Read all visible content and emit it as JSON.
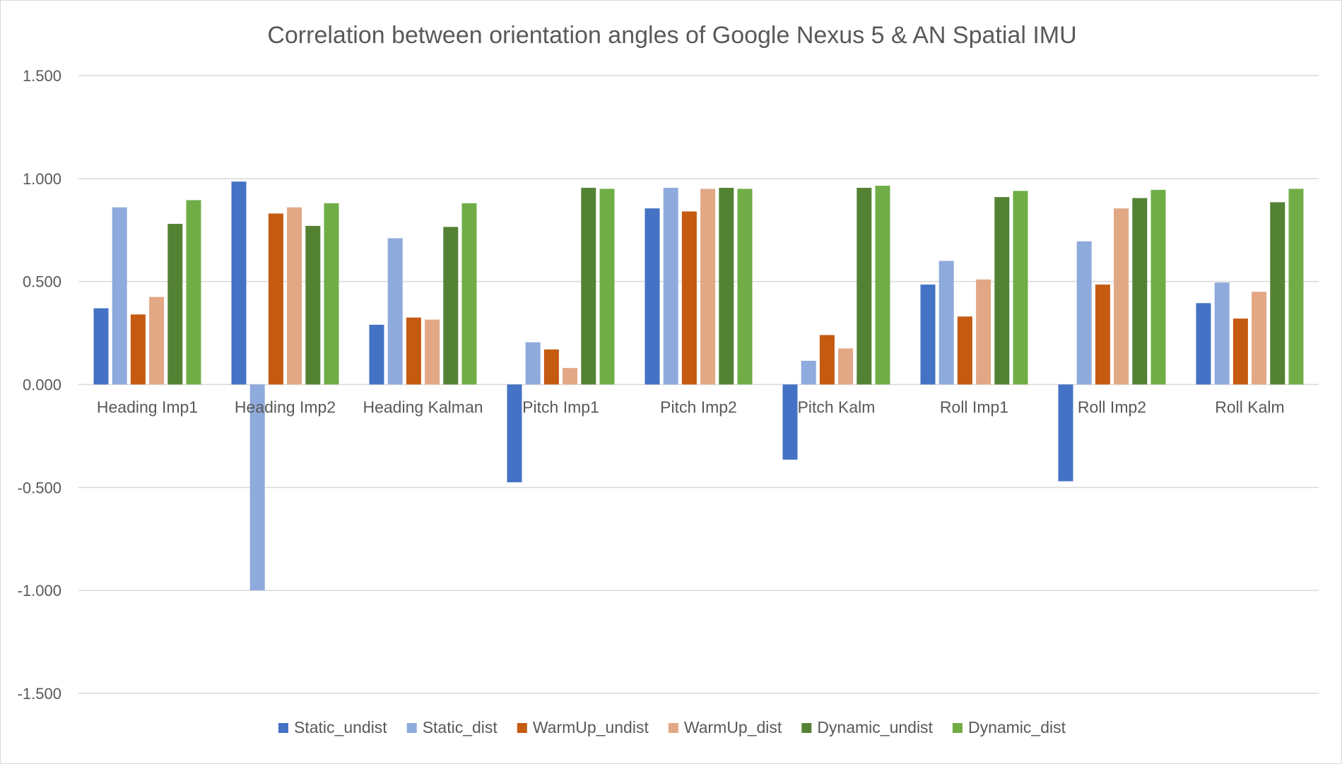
{
  "chart_data": {
    "type": "bar",
    "title": "Correlation between orientation angles of Google Nexus 5 & AN Spatial IMU",
    "xlabel": "",
    "ylabel": "",
    "ylim": [
      -1.5,
      1.5
    ],
    "yticks": [
      1.5,
      1.0,
      0.5,
      0.0,
      -0.5,
      -1.0,
      -1.5
    ],
    "ytick_labels": [
      "1.500",
      "1.000",
      "0.500",
      "0.000",
      "-0.500",
      "-1.000",
      "-1.500"
    ],
    "grid": true,
    "legend_position": "bottom",
    "categories": [
      "Heading Imp1",
      "Heading Imp2",
      "Heading Kalman",
      "Pitch Imp1",
      "Pitch Imp2",
      "Pitch Kalm",
      "Roll Imp1",
      "Roll Imp2",
      "Roll Kalm"
    ],
    "series": [
      {
        "name": "Static_undist",
        "color": "#4472c4",
        "values": [
          0.37,
          0.985,
          0.29,
          -0.475,
          0.855,
          -0.365,
          0.485,
          -0.47,
          0.395
        ]
      },
      {
        "name": "Static_dist",
        "color": "#8faadc",
        "values": [
          0.86,
          -1.0,
          0.71,
          0.205,
          0.955,
          0.115,
          0.6,
          0.695,
          0.495
        ]
      },
      {
        "name": "WarmUp_undist",
        "color": "#c55a11",
        "values": [
          0.34,
          0.83,
          0.325,
          0.17,
          0.84,
          0.24,
          0.33,
          0.485,
          0.32
        ]
      },
      {
        "name": "WarmUp_dist",
        "color": "#e2a785",
        "values": [
          0.425,
          0.86,
          0.315,
          0.08,
          0.95,
          0.175,
          0.51,
          0.855,
          0.45
        ]
      },
      {
        "name": "Dynamic_undist",
        "color": "#548235",
        "values": [
          0.78,
          0.77,
          0.765,
          0.955,
          0.955,
          0.955,
          0.91,
          0.905,
          0.885
        ]
      },
      {
        "name": "Dynamic_dist",
        "color": "#70ad47",
        "values": [
          0.895,
          0.88,
          0.88,
          0.95,
          0.95,
          0.965,
          0.94,
          0.945,
          0.95
        ]
      }
    ]
  }
}
